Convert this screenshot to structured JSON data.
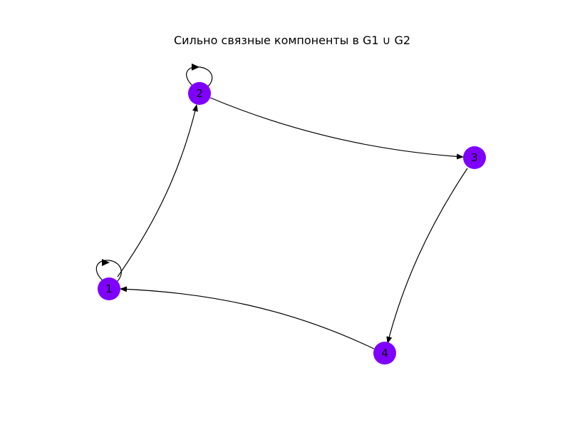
{
  "title": "Сильно связные компоненты в G1 ∪ G2",
  "node_color": "#7f00ff",
  "edge_color": "#000000",
  "nodes": [
    {
      "id": "1",
      "label": "1"
    },
    {
      "id": "2",
      "label": "2"
    },
    {
      "id": "3",
      "label": "3"
    },
    {
      "id": "4",
      "label": "4"
    }
  ],
  "edges": [
    {
      "from": "1",
      "to": "1"
    },
    {
      "from": "2",
      "to": "2"
    },
    {
      "from": "1",
      "to": "2"
    },
    {
      "from": "2",
      "to": "3"
    },
    {
      "from": "3",
      "to": "4"
    },
    {
      "from": "4",
      "to": "1"
    }
  ]
}
